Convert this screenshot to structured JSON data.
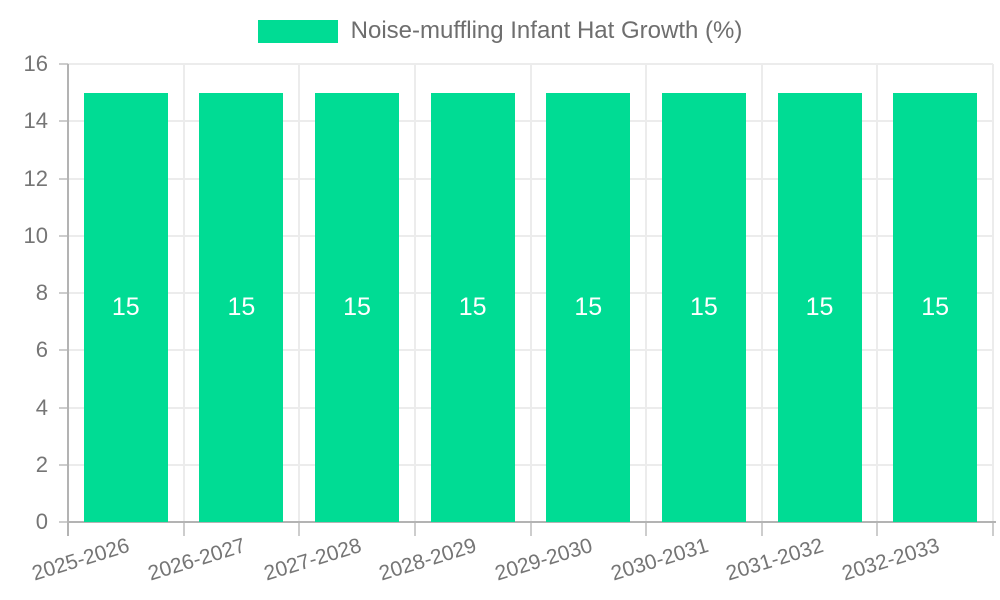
{
  "chart_data": {
    "type": "bar",
    "title": "",
    "categories": [
      "2025-2026",
      "2026-2027",
      "2027-2028",
      "2028-2029",
      "2029-2030",
      "2030-2031",
      "2031-2032",
      "2032-2033"
    ],
    "series": [
      {
        "name": "Noise-muffling Infant Hat Growth (%)",
        "values": [
          15,
          15,
          15,
          15,
          15,
          15,
          15,
          15
        ],
        "color": "#00dc94"
      }
    ],
    "value_labels": [
      "15",
      "15",
      "15",
      "15",
      "15",
      "15",
      "15",
      "15"
    ],
    "xlabel": "",
    "ylabel": "",
    "ylim": [
      0,
      16
    ],
    "ytick_step": 2,
    "ytick_labels": [
      "0",
      "2",
      "4",
      "6",
      "8",
      "10",
      "12",
      "14",
      "16"
    ],
    "grid": true,
    "legend_position": "top",
    "x_tick_rotation_deg": -17,
    "colors": {
      "bar": "#00dc94",
      "bar_value_label": "#ffffff",
      "tick_label": "#757575",
      "legend_label": "#6e6e6e",
      "gridline": "#ececec",
      "axis_line": "#b3b3b3",
      "tick_mark": "#cdcdcd",
      "background": "#ffffff"
    }
  }
}
